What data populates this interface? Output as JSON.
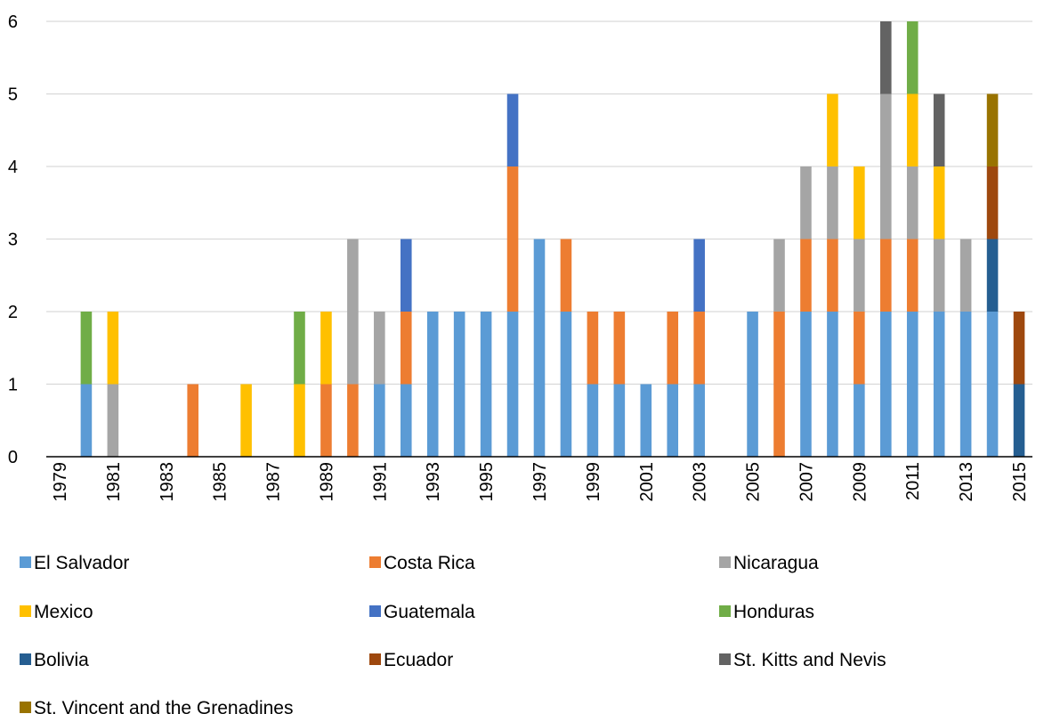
{
  "chart_data": {
    "type": "bar",
    "stacked": true,
    "title": "",
    "xlabel": "",
    "ylabel": "",
    "ylim": [
      0,
      6
    ],
    "yticks": [
      0,
      1,
      2,
      3,
      4,
      5,
      6
    ],
    "grid": "horizontal",
    "legend_position": "bottom",
    "categories": [
      "1979",
      "1980",
      "1981",
      "1982",
      "1983",
      "1984",
      "1985",
      "1986",
      "1987",
      "1988",
      "1989",
      "1990",
      "1991",
      "1992",
      "1993",
      "1994",
      "1995",
      "1996",
      "1997",
      "1998",
      "1999",
      "2000",
      "2001",
      "2002",
      "2003",
      "2004",
      "2005",
      "2006",
      "2007",
      "2008",
      "2009",
      "2010",
      "2011",
      "2012",
      "2013",
      "2014",
      "2015"
    ],
    "tick_labels": [
      "1979",
      "1981",
      "1983",
      "1985",
      "1987",
      "1989",
      "1991",
      "1993",
      "1995",
      "1997",
      "1999",
      "2001",
      "2003",
      "2005",
      "2007",
      "2009",
      "2011",
      "2013",
      "2015"
    ],
    "series": [
      {
        "name": "El Salvador",
        "color": "#5B9BD5",
        "values": [
          0,
          1,
          0,
          0,
          0,
          0,
          0,
          0,
          0,
          0,
          0,
          0,
          1,
          1,
          2,
          2,
          2,
          2,
          3,
          2,
          1,
          1,
          1,
          1,
          1,
          0,
          2,
          0,
          2,
          2,
          1,
          2,
          2,
          2,
          2,
          2,
          0
        ]
      },
      {
        "name": "Costa Rica",
        "color": "#ED7D31",
        "values": [
          0,
          0,
          0,
          0,
          0,
          1,
          0,
          0,
          0,
          0,
          1,
          1,
          0,
          1,
          0,
          0,
          0,
          2,
          0,
          1,
          1,
          1,
          0,
          1,
          1,
          0,
          0,
          2,
          1,
          1,
          1,
          1,
          1,
          0,
          0,
          0,
          0
        ]
      },
      {
        "name": "Nicaragua",
        "color": "#A5A5A5",
        "values": [
          0,
          0,
          1,
          0,
          0,
          0,
          0,
          0,
          0,
          0,
          0,
          2,
          1,
          0,
          0,
          0,
          0,
          0,
          0,
          0,
          0,
          0,
          0,
          0,
          0,
          0,
          0,
          1,
          1,
          1,
          1,
          2,
          1,
          1,
          1,
          0,
          0
        ]
      },
      {
        "name": "Mexico",
        "color": "#FFC000",
        "values": [
          0,
          0,
          1,
          0,
          0,
          0,
          0,
          1,
          0,
          1,
          1,
          0,
          0,
          0,
          0,
          0,
          0,
          0,
          0,
          0,
          0,
          0,
          0,
          0,
          0,
          0,
          0,
          0,
          0,
          1,
          1,
          0,
          1,
          1,
          0,
          0,
          0
        ]
      },
      {
        "name": "Guatemala",
        "color": "#4472C4",
        "values": [
          0,
          0,
          0,
          0,
          0,
          0,
          0,
          0,
          0,
          0,
          0,
          0,
          0,
          1,
          0,
          0,
          0,
          1,
          0,
          0,
          0,
          0,
          0,
          0,
          1,
          0,
          0,
          0,
          0,
          0,
          0,
          0,
          0,
          0,
          0,
          0,
          0
        ]
      },
      {
        "name": "Honduras",
        "color": "#70AD47",
        "values": [
          0,
          1,
          0,
          0,
          0,
          0,
          0,
          0,
          0,
          1,
          0,
          0,
          0,
          0,
          0,
          0,
          0,
          0,
          0,
          0,
          0,
          0,
          0,
          0,
          0,
          0,
          0,
          0,
          0,
          0,
          0,
          0,
          1,
          0,
          0,
          0,
          0
        ]
      },
      {
        "name": "Bolivia",
        "color": "#255E91",
        "values": [
          0,
          0,
          0,
          0,
          0,
          0,
          0,
          0,
          0,
          0,
          0,
          0,
          0,
          0,
          0,
          0,
          0,
          0,
          0,
          0,
          0,
          0,
          0,
          0,
          0,
          0,
          0,
          0,
          0,
          0,
          0,
          0,
          0,
          0,
          0,
          1,
          1
        ]
      },
      {
        "name": "Ecuador",
        "color": "#9E480E",
        "values": [
          0,
          0,
          0,
          0,
          0,
          0,
          0,
          0,
          0,
          0,
          0,
          0,
          0,
          0,
          0,
          0,
          0,
          0,
          0,
          0,
          0,
          0,
          0,
          0,
          0,
          0,
          0,
          0,
          0,
          0,
          0,
          0,
          0,
          0,
          0,
          1,
          1
        ]
      },
      {
        "name": "St. Kitts and Nevis",
        "color": "#636363",
        "values": [
          0,
          0,
          0,
          0,
          0,
          0,
          0,
          0,
          0,
          0,
          0,
          0,
          0,
          0,
          0,
          0,
          0,
          0,
          0,
          0,
          0,
          0,
          0,
          0,
          0,
          0,
          0,
          0,
          0,
          0,
          0,
          1,
          0,
          1,
          0,
          0,
          0
        ]
      },
      {
        "name": "St. Vincent and the Grenadines",
        "color": "#997300",
        "values": [
          0,
          0,
          0,
          0,
          0,
          0,
          0,
          0,
          0,
          0,
          0,
          0,
          0,
          0,
          0,
          0,
          0,
          0,
          0,
          0,
          0,
          0,
          0,
          0,
          0,
          0,
          0,
          0,
          0,
          0,
          0,
          0,
          0,
          0,
          0,
          1,
          0
        ]
      }
    ]
  }
}
